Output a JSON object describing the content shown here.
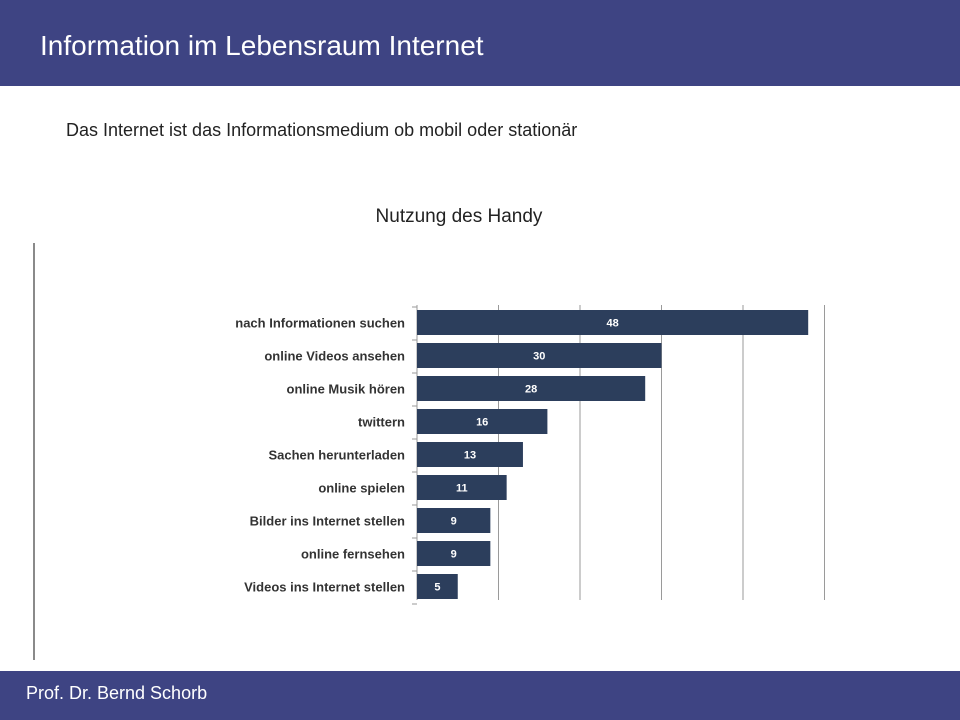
{
  "header": {
    "title": "Information im Lebensraum Internet"
  },
  "subtitle": "Das Internet ist das Informationsmedium ob mobil oder stationär",
  "footer": {
    "author": "Prof. Dr. Bernd Schorb"
  },
  "colors": {
    "header_bg": "#3e4483",
    "bar": "#2c3e5c",
    "grid": "#9a9a9a"
  },
  "chart_data": {
    "type": "bar",
    "orientation": "horizontal",
    "title": "Nutzung des Handy",
    "categories": [
      "nach Informationen suchen",
      "online Videos ansehen",
      "online Musik hören",
      "twittern",
      "Sachen herunterladen",
      "online spielen",
      "Bilder ins Internet stellen",
      "online fernsehen",
      "Videos ins Internet stellen"
    ],
    "values": [
      48,
      30,
      28,
      16,
      13,
      11,
      9,
      9,
      5
    ],
    "xlim": [
      0,
      50
    ],
    "grid": true,
    "data_labels": true,
    "legend": "none"
  }
}
